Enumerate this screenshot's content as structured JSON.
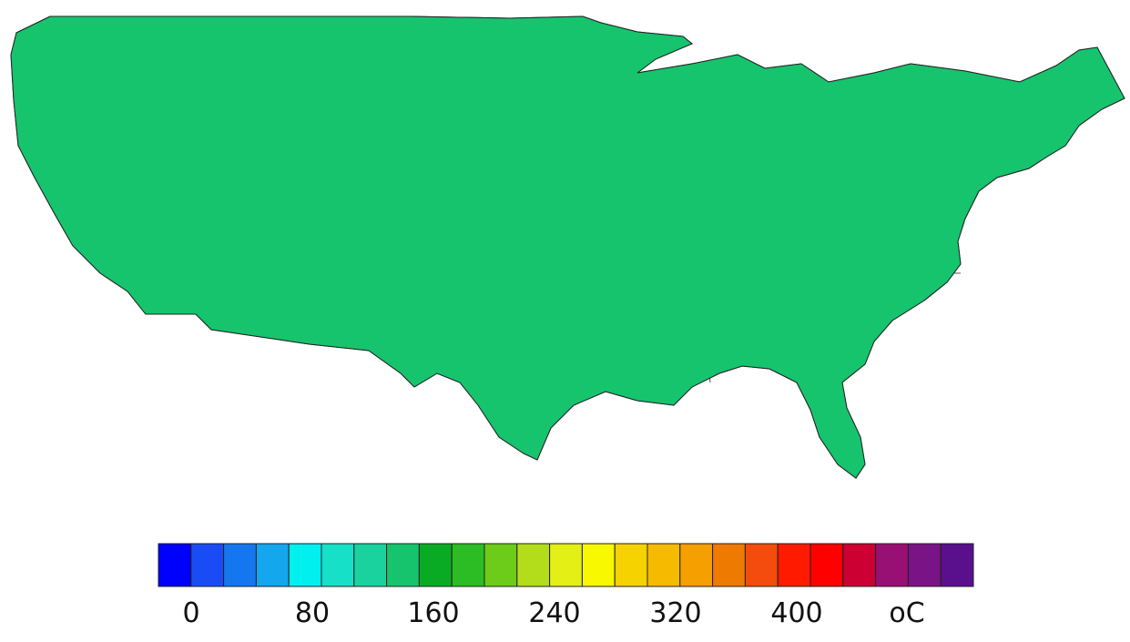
{
  "legend": {
    "colors": [
      "#0000ff",
      "#1a4cf5",
      "#1577f0",
      "#14a6ee",
      "#00efef",
      "#17e0c8",
      "#19d29d",
      "#16c46e",
      "#0aab24",
      "#2cbc23",
      "#6dcc19",
      "#b3dd1b",
      "#e3ef15",
      "#f8f800",
      "#f5d200",
      "#f6bb00",
      "#f59f00",
      "#ef7a00",
      "#f44c0c",
      "#ff1a00",
      "#ff0000",
      "#cc0033",
      "#991075",
      "#7a1385",
      "#5a0f8c"
    ],
    "tick_labels": [
      "0",
      "80",
      "160",
      "240",
      "320",
      "400"
    ],
    "unit_label": "oC"
  },
  "map": {
    "region_colors": {
      "pacific_northwest": "#1e84ff",
      "northwest_interior": "#2f7ff0",
      "rockies": "#3a6ff0",
      "northern_plains": "#2ad6c0",
      "great_lakes": "#22c7dc",
      "northeast": "#24b2f0",
      "central": "#17b52a",
      "mid_atlantic": "#22c43a",
      "southeast": "#a9dc1c",
      "gulf_coast": "#c6e41a",
      "texas": "#7fd22b",
      "southwest_desert": "#f7c400",
      "california_coast": "#e9e21a",
      "florida": "#e0df10",
      "south_florida": "#f59b00",
      "great_basin": "#32c76b"
    }
  }
}
